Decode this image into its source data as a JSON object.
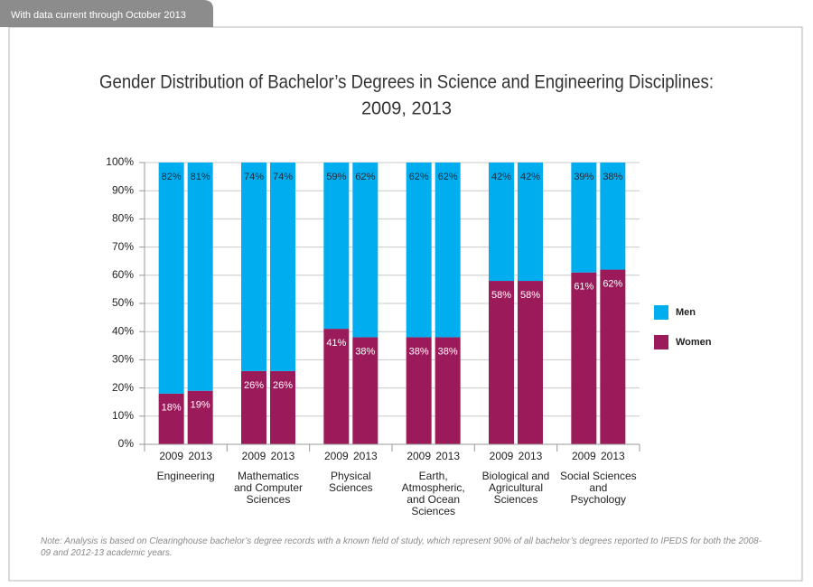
{
  "header": {
    "banner": "With data current through October 2013"
  },
  "chart_data": {
    "type": "stacked-bar",
    "title": "Gender Distribution of Bachelor’s Degrees in Science and Engineering Disciplines:",
    "subtitle": "2009, 2013",
    "categories": [
      "2009",
      "2013",
      "2009",
      "2013",
      "2009",
      "2013",
      "2009",
      "2013",
      "2009",
      "2013",
      "2009",
      "2013"
    ],
    "groups": [
      [
        "Engineering"
      ],
      [
        "Mathematics",
        "and Computer",
        "Sciences"
      ],
      [
        "Physical",
        "Sciences"
      ],
      [
        "Earth,",
        "Atmospheric,",
        "and Ocean",
        "Sciences"
      ],
      [
        "Biological and",
        "Agricultural",
        "Sciences"
      ],
      [
        "Social Sciences",
        "and",
        "Psychology"
      ]
    ],
    "series": [
      {
        "name": "Women",
        "color": "#9b1b5a",
        "values": [
          18,
          19,
          26,
          26,
          41,
          38,
          38,
          38,
          58,
          58,
          61,
          62
        ],
        "value_labels": [
          "18%",
          "19%",
          "26%",
          "26%",
          "41%",
          "38%",
          "38%",
          "38%",
          "58%",
          "58%",
          "61%",
          "62%"
        ]
      },
      {
        "name": "Men",
        "color": "#00aeef",
        "values": [
          82,
          81,
          74,
          74,
          59,
          62,
          62,
          62,
          42,
          42,
          39,
          38
        ],
        "value_labels": [
          "82%",
          "81%",
          "74%",
          "74%",
          "59%",
          "62%",
          "62%",
          "62%",
          "42%",
          "42%",
          "39%",
          "38%"
        ]
      }
    ],
    "ylim": [
      0,
      100
    ],
    "yticks": [
      {
        "value": 0,
        "label": "0%"
      },
      {
        "value": 10,
        "label": "10%"
      },
      {
        "value": 20,
        "label": "20%"
      },
      {
        "value": 30,
        "label": "30%"
      },
      {
        "value": 40,
        "label": "40%"
      },
      {
        "value": 50,
        "label": "50%"
      },
      {
        "value": 60,
        "label": "60%"
      },
      {
        "value": 70,
        "label": "70%"
      },
      {
        "value": 80,
        "label": "80%"
      },
      {
        "value": 90,
        "label": "90%"
      },
      {
        "value": 100,
        "label": "100%"
      }
    ],
    "grid": true,
    "legend": "right"
  },
  "note": "Note: Analysis is based on Clearinghouse bachelor’s degree records with a known field of study, which represent 90% of all bachelor’s degrees reported to IPEDS for both the 2008-09 and 2012-13 academic years."
}
